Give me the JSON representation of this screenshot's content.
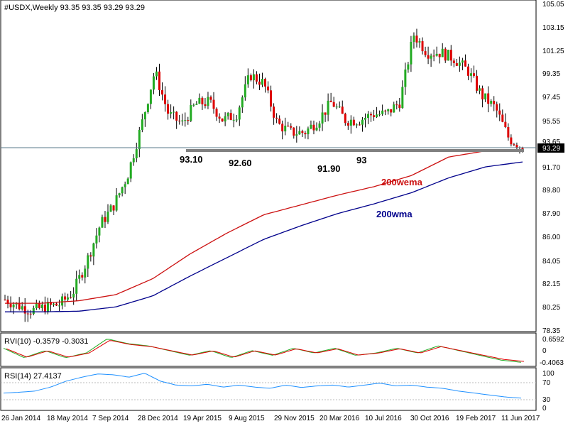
{
  "main_header": "#USDX,Weekly  93.35 93.35 93.29 93.29",
  "rvi_header": "RVI(10) -0.3579 -0.3031",
  "rsi_header": "RSI(14) 27.4137",
  "colors": {
    "bull_candle": "#22aa22",
    "bear_candle": "#dd0000",
    "wema_line": "#cc1111",
    "wma_line": "#00008b",
    "rvi_main": "#22aa22",
    "rvi_signal": "#dd0000",
    "rsi_line": "#1e90ff",
    "support_line": "#777777"
  },
  "chart_data": [
    {
      "type": "candlestick",
      "title": "#USDX,Weekly",
      "ylim": [
        78.35,
        105.05
      ],
      "y_ticks": [
        "105.05",
        "103.15",
        "101.25",
        "99.35",
        "97.45",
        "95.55",
        "93.65",
        "91.70",
        "89.80",
        "87.90",
        "86.00",
        "84.05",
        "82.15",
        "80.25",
        "78.35"
      ],
      "x_tick_labels": [
        "26 Jan 2014",
        "18 May 2014",
        "7 Sep 2014",
        "28 Dec 2014",
        "19 Apr 2015",
        "9 Aug 2015",
        "29 Nov 2015",
        "20 Mar 2016",
        "10 Jul 2016",
        "30 Oct 2016",
        "19 Feb 2017",
        "11 Jun 2017"
      ],
      "current_price": "93.29",
      "series": [
        {
          "name": "200wema",
          "values": [
            80.6,
            80.6,
            80.8,
            81.3,
            82.6,
            84.6,
            86.3,
            87.8,
            88.6,
            89.4,
            90.1,
            91.0,
            92.5,
            93.0,
            93.1
          ]
        },
        {
          "name": "200wma",
          "values": [
            79.9,
            79.9,
            79.95,
            80.3,
            81.2,
            82.8,
            84.3,
            85.8,
            86.9,
            87.9,
            88.7,
            89.6,
            90.8,
            91.7,
            92.1
          ]
        }
      ],
      "close_values": [
        80.9,
        80.4,
        80.0,
        80.3,
        80.5,
        81.5,
        84.0,
        87.0,
        88.6,
        91.0,
        95.0,
        99.5,
        96.0,
        95.2,
        96.8,
        97.0,
        95.5,
        96.0,
        99.2,
        98.5,
        95.2,
        94.5,
        94.5,
        95.5,
        97.0,
        95.5,
        95.5,
        96.0,
        96.0,
        97.0,
        102.5,
        101.0,
        101.0,
        100.5,
        99.5,
        97.5,
        96.5,
        94.0,
        93.3
      ],
      "annotations": [
        "93.10",
        "92.60",
        "91.90",
        "93",
        "200wema",
        "200wma"
      ]
    },
    {
      "type": "line",
      "title": "RVI(10)",
      "y_ticks": [
        "0.6592",
        "0",
        "-0.4063"
      ],
      "series_values": [
        0.2,
        -0.2,
        0.1,
        -0.2,
        0.0,
        0.6,
        0.4,
        0.3,
        0.1,
        -0.1,
        0.1,
        -0.2,
        0.1,
        -0.1,
        0.2,
        0.0,
        0.2,
        -0.1,
        0.0,
        0.2,
        0.0,
        0.3,
        0.1,
        -0.1,
        -0.3,
        -0.4
      ]
    },
    {
      "type": "line",
      "title": "RSI(14)",
      "y_ticks": [
        "100",
        "70",
        "30",
        "0"
      ],
      "series_values": [
        40,
        42,
        45,
        55,
        70,
        80,
        88,
        86,
        80,
        90,
        70,
        60,
        58,
        62,
        55,
        60,
        55,
        52,
        60,
        54,
        58,
        60,
        55,
        60,
        65,
        58,
        60,
        55,
        52,
        45,
        40,
        35,
        30,
        27.4
      ]
    }
  ]
}
